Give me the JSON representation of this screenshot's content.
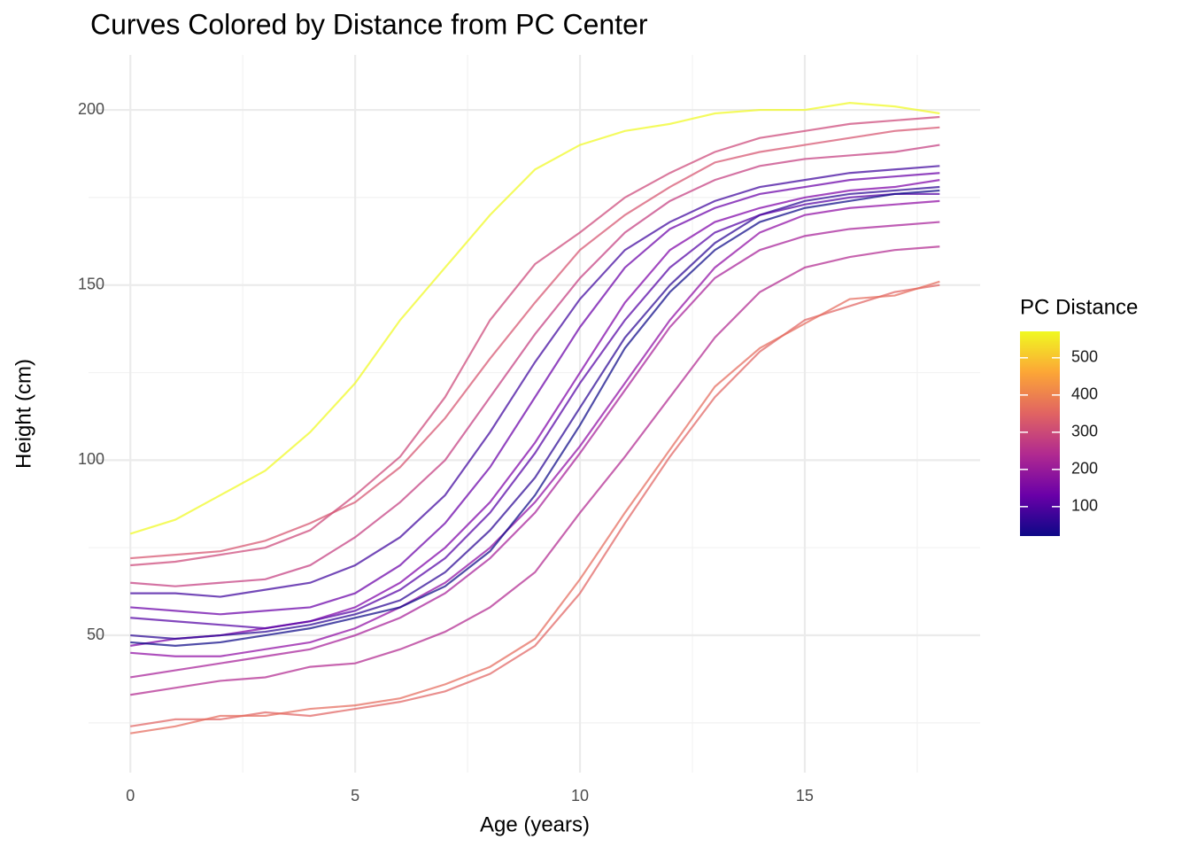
{
  "chart_data": {
    "type": "line",
    "title": "Curves Colored by Distance from PC Center",
    "x_label": "Age (years)",
    "y_label": "Height (cm)",
    "x": [
      0,
      1,
      2,
      3,
      4,
      5,
      6,
      7,
      8,
      9,
      10,
      11,
      12,
      13,
      14,
      15,
      16,
      17,
      18
    ],
    "xlim": [
      -0.93,
      18.9
    ],
    "ylim": [
      10.8,
      215.7
    ],
    "xticks": [
      0,
      5,
      10,
      15
    ],
    "yticks": [
      50,
      100,
      150,
      200
    ],
    "minor_xticks": [
      2.5,
      7.5,
      12.5,
      17.5
    ],
    "minor_yticks": [
      25,
      75,
      125,
      175
    ],
    "grid": true,
    "line_opacity": 0.72,
    "series": [
      {
        "color": "#f0f921",
        "values": [
          79,
          83,
          90,
          97,
          108,
          122,
          140,
          155,
          170,
          183,
          190,
          194,
          196,
          199,
          200,
          200,
          202,
          201,
          199
        ]
      },
      {
        "color": "#e16462",
        "values": [
          24,
          26,
          26,
          28,
          27,
          29,
          31,
          34,
          39,
          47,
          62,
          82,
          101,
          118,
          131,
          140,
          144,
          148,
          150
        ]
      },
      {
        "color": "#e56b5d",
        "values": [
          22,
          24,
          27,
          27,
          29,
          30,
          32,
          36,
          41,
          49,
          66,
          85,
          103,
          121,
          132,
          139,
          146,
          147,
          151
        ]
      },
      {
        "color": "#cc4778",
        "values": [
          70,
          71,
          73,
          75,
          80,
          90,
          101,
          118,
          140,
          156,
          165,
          175,
          182,
          188,
          192,
          194,
          196,
          197,
          198
        ]
      },
      {
        "color": "#d5536f",
        "values": [
          72,
          73,
          74,
          77,
          82,
          88,
          98,
          112,
          129,
          145,
          160,
          170,
          178,
          185,
          188,
          190,
          192,
          194,
          195
        ]
      },
      {
        "color": "#b12a90",
        "values": [
          33,
          35,
          37,
          38,
          41,
          42,
          46,
          51,
          58,
          68,
          85,
          101,
          118,
          135,
          148,
          155,
          158,
          160,
          161
        ]
      },
      {
        "color": "#7e03a8",
        "values": [
          47,
          49,
          50,
          52,
          54,
          58,
          65,
          75,
          88,
          105,
          125,
          145,
          160,
          168,
          172,
          175,
          177,
          178,
          180
        ]
      },
      {
        "color": "#2a0593",
        "values": [
          50,
          49,
          50,
          51,
          53,
          56,
          60,
          68,
          80,
          95,
          115,
          135,
          150,
          162,
          170,
          174,
          176,
          177,
          178
        ]
      },
      {
        "color": "#5302a3",
        "values": [
          55,
          54,
          53,
          52,
          54,
          57,
          63,
          72,
          85,
          102,
          122,
          140,
          155,
          165,
          170,
          173,
          175,
          176,
          176
        ]
      },
      {
        "color": "#6a00a8",
        "values": [
          58,
          57,
          56,
          57,
          58,
          62,
          70,
          82,
          98,
          118,
          138,
          155,
          166,
          172,
          176,
          178,
          180,
          181,
          182
        ]
      },
      {
        "color": "#8f0da4",
        "values": [
          45,
          44,
          44,
          46,
          48,
          52,
          58,
          65,
          75,
          88,
          104,
          122,
          140,
          155,
          165,
          170,
          172,
          173,
          174
        ]
      },
      {
        "color": "#3e049c",
        "values": [
          62,
          62,
          61,
          63,
          65,
          70,
          78,
          90,
          108,
          128,
          146,
          160,
          168,
          174,
          178,
          180,
          182,
          183,
          184
        ]
      },
      {
        "color": "#a62098",
        "values": [
          38,
          40,
          42,
          44,
          46,
          50,
          55,
          62,
          72,
          85,
          102,
          120,
          138,
          152,
          160,
          164,
          166,
          167,
          168
        ]
      },
      {
        "color": "#c33d80",
        "values": [
          65,
          64,
          65,
          66,
          70,
          78,
          88,
          100,
          118,
          136,
          152,
          165,
          174,
          180,
          184,
          186,
          187,
          188,
          190
        ]
      },
      {
        "color": "#0d0887",
        "values": [
          48,
          47,
          48,
          50,
          52,
          55,
          58,
          64,
          74,
          90,
          110,
          132,
          148,
          160,
          168,
          172,
          174,
          176,
          177
        ]
      }
    ],
    "colorbar": {
      "title": "PC Distance",
      "lim": [
        21,
        571
      ],
      "ticks": [
        100,
        200,
        300,
        400,
        500
      ],
      "colors": [
        "#0d0887",
        "#6a00a8",
        "#b12a90",
        "#e16462",
        "#fca636",
        "#f0f921"
      ]
    }
  }
}
